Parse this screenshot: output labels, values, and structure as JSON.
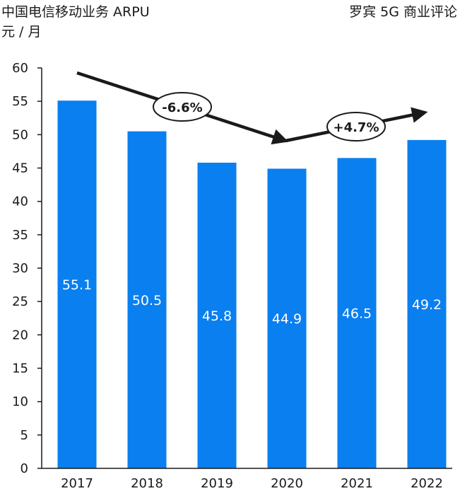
{
  "header": {
    "title": "中国电信移动业务 ARPU",
    "unit": "元 / 月",
    "source": "罗宾 5G 商业评论"
  },
  "chart_data": {
    "type": "bar",
    "categories": [
      "2017",
      "2018",
      "2019",
      "2020",
      "2021",
      "2022"
    ],
    "values": [
      55.1,
      50.5,
      45.8,
      44.9,
      46.5,
      49.2
    ],
    "data_labels": [
      "55.1",
      "50.5",
      "45.8",
      "44.9",
      "46.5",
      "49.2"
    ],
    "ylim": [
      0,
      60
    ],
    "yticks": [
      0,
      5,
      10,
      15,
      20,
      25,
      30,
      35,
      40,
      45,
      50,
      55,
      60
    ],
    "grid": false,
    "colors": {
      "bar": "#0a7ff0",
      "arrow": "#1a1a1a",
      "axis": "#1a1a1a"
    },
    "annotations": [
      {
        "text": "-6.6%",
        "trend": "down",
        "from_category": "2017",
        "to_category": "2020"
      },
      {
        "text": "+4.7%",
        "trend": "up",
        "from_category": "2020",
        "to_category": "2022"
      }
    ]
  }
}
